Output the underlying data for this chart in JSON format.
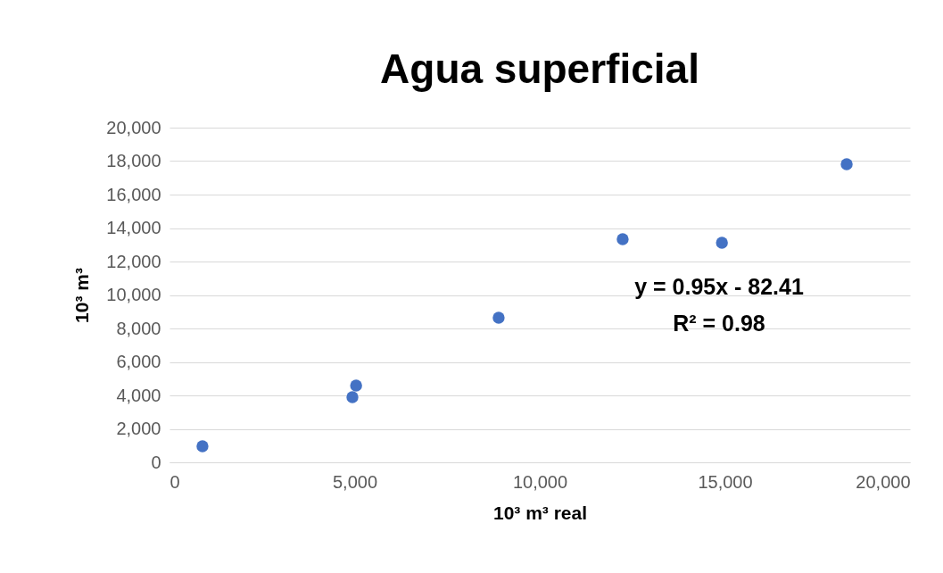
{
  "chart_data": {
    "type": "scatter",
    "title": "Agua superficial",
    "xlabel": "10³ m³ real",
    "ylabel": "10³ m³",
    "x": [
      890,
      4940,
      5040,
      8890,
      12240,
      14920,
      18290
    ],
    "series": [
      {
        "color": "#4472c4",
        "values": [
          960,
          3890,
          4590,
          8640,
          13330,
          13120,
          17810
        ]
      }
    ],
    "xlim": [
      0,
      20000
    ],
    "xticks": [
      {
        "value": 0,
        "label": "0"
      },
      {
        "value": 5000,
        "label": "5,000"
      },
      {
        "value": 10000,
        "label": "10,000"
      },
      {
        "value": 15000,
        "label": "15,000"
      },
      {
        "value": 20000,
        "label": "20,000"
      }
    ],
    "ylim": [
      0,
      20000
    ],
    "yticks": [
      {
        "value": 0,
        "label": "0"
      },
      {
        "value": 2000,
        "label": "2,000"
      },
      {
        "value": 4000,
        "label": "4,000"
      },
      {
        "value": 6000,
        "label": "6,000"
      },
      {
        "value": 8000,
        "label": "8,000"
      },
      {
        "value": 10000,
        "label": "10,000"
      },
      {
        "value": 12000,
        "label": "12,000"
      },
      {
        "value": 14000,
        "label": "14,000"
      },
      {
        "value": 16000,
        "label": "16,000"
      },
      {
        "value": 18000,
        "label": "18,000"
      },
      {
        "value": 20000,
        "label": "20,000"
      }
    ],
    "annotations": [
      "y = 0.95x  - 82.41",
      "R² = 0.98"
    ],
    "grid": "y",
    "marker": "circle"
  }
}
